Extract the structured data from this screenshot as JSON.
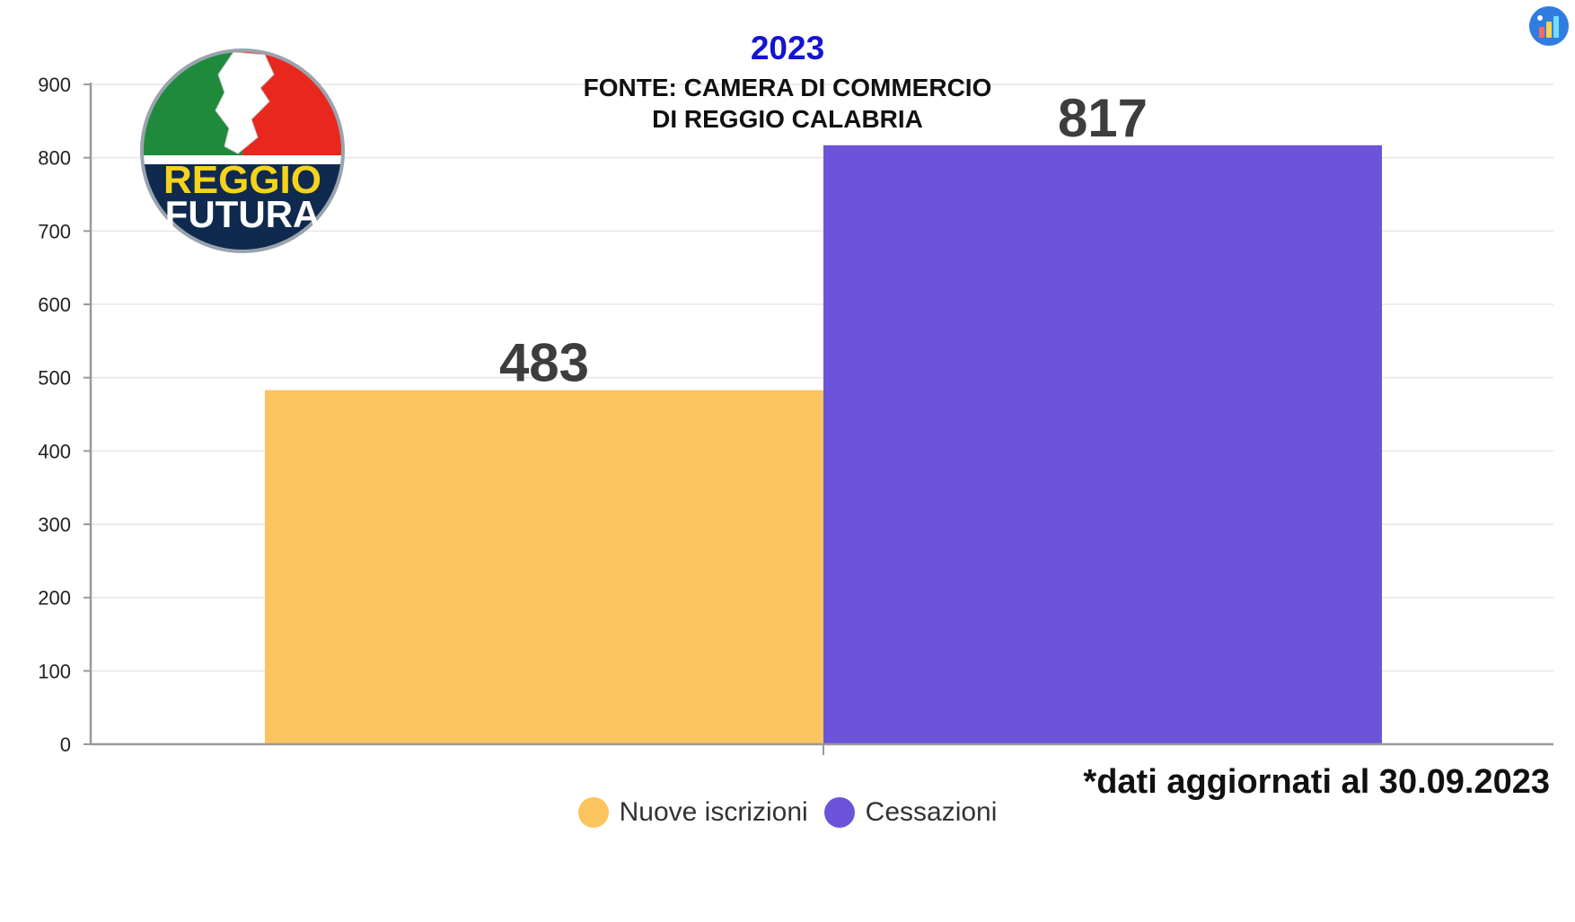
{
  "header": {
    "year": "2023",
    "source_line_1": "FONTE: CAMERA DI COMMERCIO",
    "source_line_2": "DI REGGIO CALABRIA"
  },
  "logo": {
    "icon": "reggio-futura-logo",
    "line_1": "REGGIO",
    "line_2": "FUTURA"
  },
  "corner_icon": "chart-app-icon",
  "footnote": "*dati aggiornati al 30.09.2023",
  "colors": {
    "nuove": "#fcc45e",
    "cessazioni": "#6c53d9",
    "year": "#1414d2"
  },
  "legend": [
    {
      "label": "Nuove iscrizioni",
      "color": "#fcc45e"
    },
    {
      "label": "Cessazioni",
      "color": "#6c53d9"
    }
  ],
  "chart_data": {
    "type": "bar",
    "categories": [
      ""
    ],
    "series": [
      {
        "name": "Nuove iscrizioni",
        "values": [
          483
        ],
        "color": "#fcc45e"
      },
      {
        "name": "Cessazioni",
        "values": [
          817
        ],
        "color": "#6c53d9"
      }
    ],
    "title": "",
    "xlabel": "",
    "ylabel": "",
    "ylim": [
      0,
      900
    ],
    "yticks": [
      0,
      100,
      200,
      300,
      400,
      500,
      600,
      700,
      800,
      900
    ],
    "data_labels": [
      "483",
      "817"
    ],
    "grid": true,
    "legend_position": "bottom"
  }
}
